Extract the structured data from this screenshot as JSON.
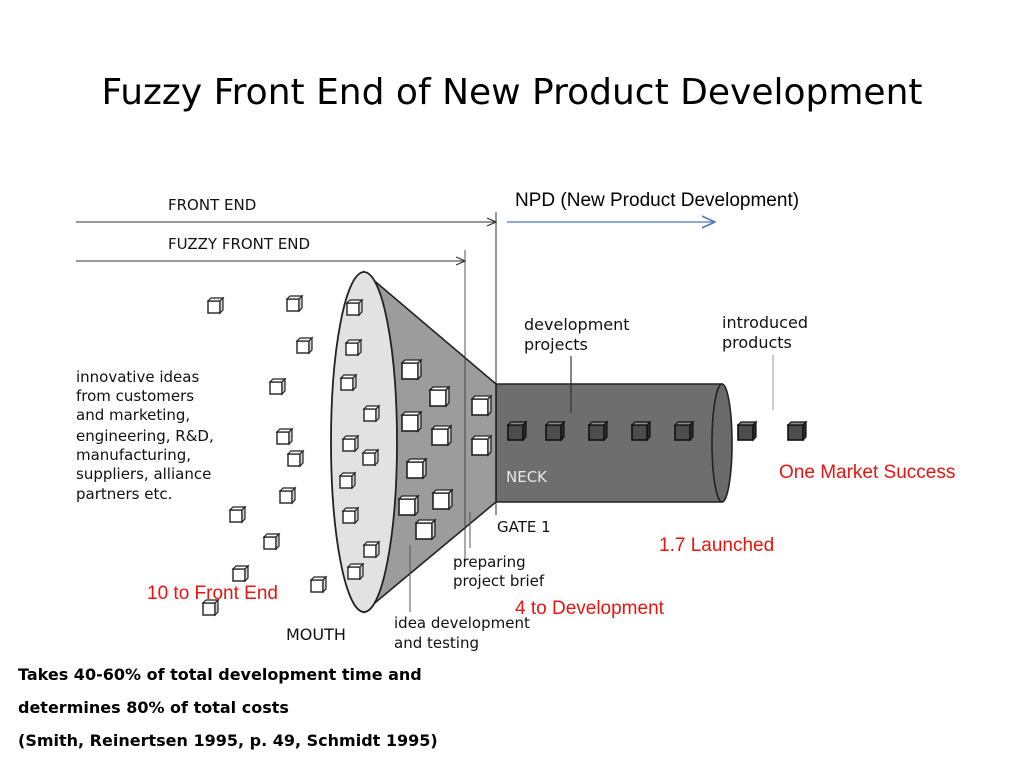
{
  "title": "Fuzzy Front End of New Product Development",
  "labels": {
    "front_end": "FRONT END",
    "fuzzy_front_end": "FUZZY FRONT END",
    "npd": "NPD (New Product Development)",
    "ideas_lines": [
      "innovative ideas",
      "from customers",
      "and marketing,",
      "engineering, R&D,",
      "manufacturing,",
      "suppliers, alliance",
      "partners etc."
    ],
    "development_projects": [
      "development",
      "projects"
    ],
    "introduced_products": [
      "introduced",
      "products"
    ],
    "neck": "NECK",
    "gate": "GATE 1",
    "preparing_brief": [
      "preparing",
      "project brief"
    ],
    "idea_development": [
      "idea development",
      "and testing"
    ],
    "mouth": "MOUTH"
  },
  "stats": {
    "front_end_count": "10 to Front End",
    "development_count": "4 to Development",
    "launched": "1.7 Launched",
    "success": "One Market Success"
  },
  "footer": {
    "line1": "Takes 40-60% of total development time and",
    "line2": "determines 80% of total costs",
    "line3": "(Smith, Reinertsen 1995, p. 49, Schmidt 1995)"
  },
  "colors": {
    "highlight": "#e8140e",
    "npd_arrow": "#4a7ab8",
    "funnel_mouth": "#e2e2e2",
    "funnel_body": "#9c9c9c",
    "neck": "#6e6e6e"
  }
}
